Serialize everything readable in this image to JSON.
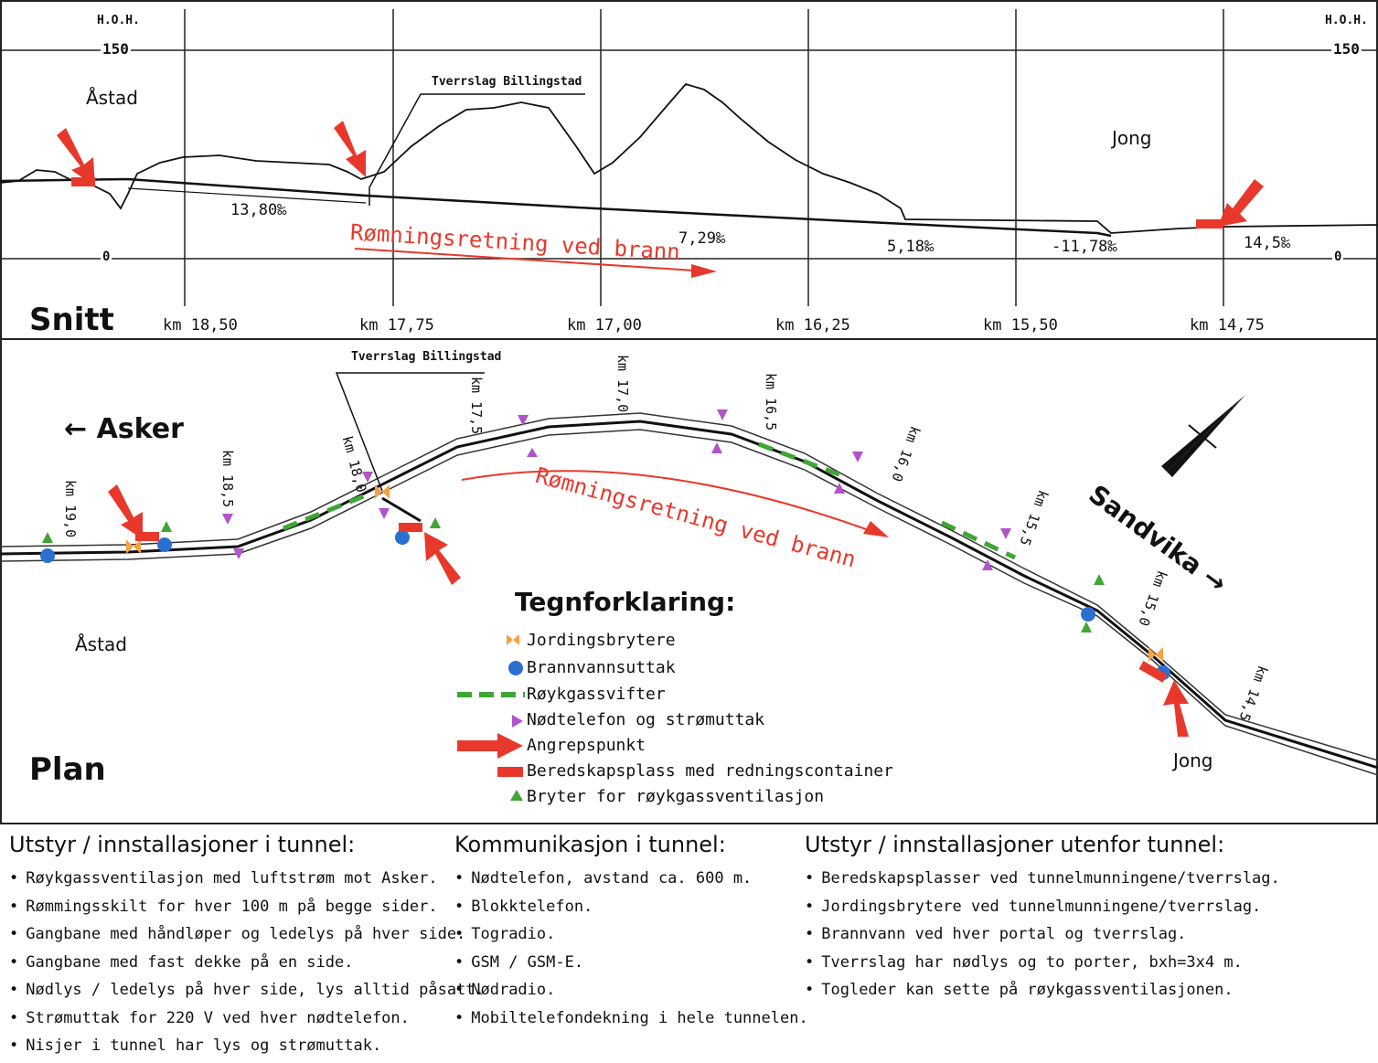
{
  "section": {
    "title": "Snitt",
    "hoh_left": "H.O.H.",
    "hoh_right": "H.O.H.",
    "level_150_left": "150",
    "level_150_right": "150",
    "level_0_left": "0",
    "level_0_right": "0",
    "place_left": "Åstad",
    "place_right": "Jong",
    "tverrslag": "Tverrslag Billingstad",
    "escape_label": "Rømningsretning ved brann",
    "gradients": [
      "13,80‰",
      "7,29‰",
      "5,18‰",
      "-11,78‰",
      "14,5‰"
    ],
    "km_ticks": [
      "km 18,50",
      "km 17,75",
      "km 17,00",
      "km 16,25",
      "km 15,50",
      "km 14,75"
    ]
  },
  "plan": {
    "title": "Plan",
    "asker": "← Asker",
    "sandvika": "Sandvika →",
    "place_left": "Åstad",
    "place_right": "Jong",
    "tverrslag": "Tverrslag Billingstad",
    "escape_label": "Rømningsretning ved brann",
    "km_markers": [
      "km 19,0",
      "km 18,5",
      "km 18,0",
      "km 17,5",
      "km 17,0",
      "km 16,5",
      "km 16,0",
      "km 15,5",
      "km 15,0",
      "km 14,5"
    ]
  },
  "legend": {
    "title": "Tegnforklaring:",
    "items": [
      {
        "label": "Jordingsbrytere",
        "icon": "bowtie-icon",
        "color": "#f5a142"
      },
      {
        "label": "Brannvannsuttak",
        "icon": "circle-icon",
        "color": "#2b6fd1"
      },
      {
        "label": "Røykgassvifter",
        "icon": "dashed-line-icon",
        "color": "#3fa535"
      },
      {
        "label": "Nødtelefon og strømuttak",
        "icon": "triangle-icon",
        "color": "#b153c9"
      },
      {
        "label": "Angrepspunkt",
        "icon": "arrow-icon",
        "color": "#e8382c"
      },
      {
        "label": "Beredskapsplass med redningscontainer",
        "icon": "rectangle-icon",
        "color": "#e8382c"
      },
      {
        "label": "Bryter for røykgassventilasjon",
        "icon": "triangle-up-icon",
        "color": "#3fa535"
      }
    ]
  },
  "columns": [
    {
      "title": "Utstyr / innstallasjoner i tunnel:",
      "items": [
        "Røykgassventilasjon med luftstrøm mot Asker.",
        "Rømmingsskilt for hver 100 m på begge sider.",
        "Gangbane med håndløper og ledelys på hver side.",
        "Gangbane med fast dekke på en side.",
        "Nødlys / ledelys på hver side, lys alltid påsatt.",
        "Strømuttak for 220 V ved hver nødtelefon.",
        "Nisjer i tunnel har lys og strømuttak."
      ]
    },
    {
      "title": "Kommunikasjon i tunnel:",
      "items": [
        "Nødtelefon, avstand ca. 600 m.",
        "Blokktelefon.",
        "Togradio.",
        "GSM / GSM-E.",
        "Nødradio.",
        "Mobiltelefondekning i hele tunnelen."
      ]
    },
    {
      "title": "Utstyr / innstallasjoner utenfor tunnel:",
      "items": [
        "Beredskapsplasser ved tunnelmunningene/tverrslag.",
        "Jordingsbrytere ved tunnelmunningene/tverrslag.",
        "Brannvann ved hver portal og tverrslag.",
        "Tverrslag har nødlys og to porter, bxh=3x4 m.",
        "Togleder kan sette på røykgassventilasjonen."
      ]
    }
  ],
  "colors": {
    "accent_red": "#e8382c",
    "orange": "#f5a142",
    "blue": "#2b6fd1",
    "green": "#3fa535",
    "purple": "#b153c9"
  }
}
